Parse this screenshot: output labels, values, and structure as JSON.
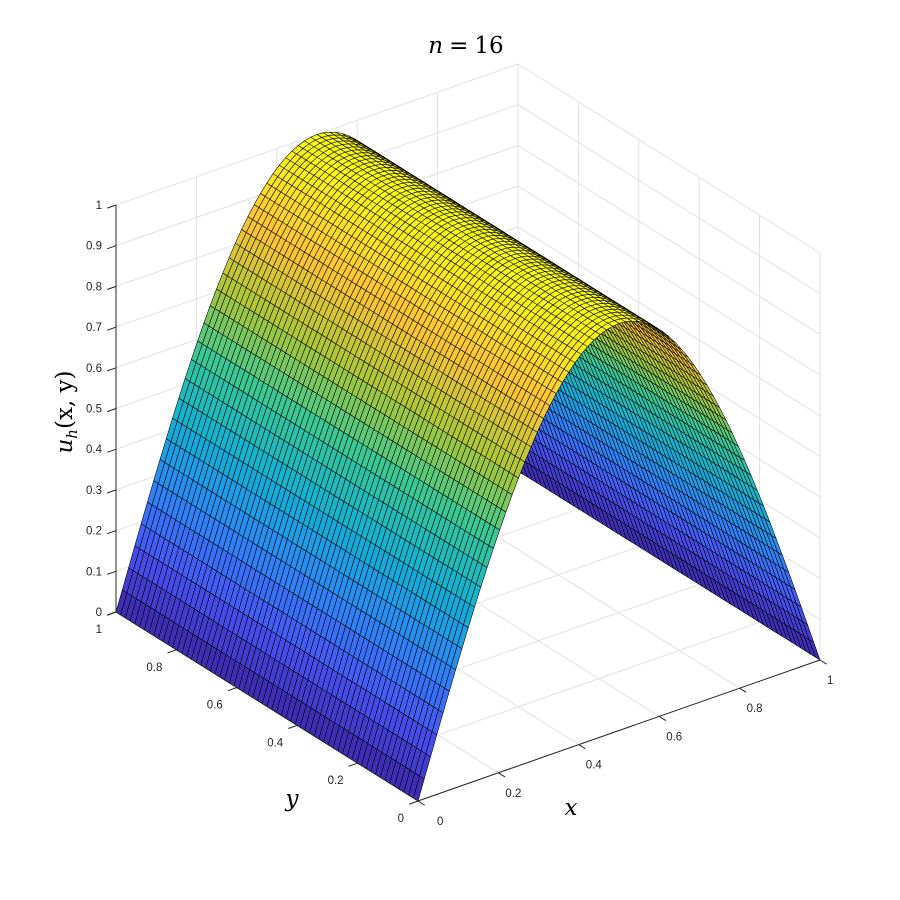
{
  "chart_data": {
    "type": "surface",
    "title": "n = 16",
    "xlabel": "x",
    "ylabel": "y",
    "zlabel": "u_h(x, y)",
    "xlim": [
      0,
      1
    ],
    "ylim": [
      0,
      1
    ],
    "zlim": [
      0,
      1
    ],
    "x_ticks": [
      "0",
      "0.2",
      "0.4",
      "0.6",
      "0.8",
      "1"
    ],
    "y_ticks": [
      "0",
      "0.2",
      "0.4",
      "0.6",
      "0.8",
      "1"
    ],
    "z_ticks": [
      "0",
      "0.1",
      "0.2",
      "0.3",
      "0.4",
      "0.5",
      "0.6",
      "0.7",
      "0.8",
      "0.9",
      "1"
    ],
    "grid": true,
    "colormap": "parula",
    "function": "u(x,y) = sin(pi*x), constant along y",
    "surface_grid": {
      "nx": 65,
      "ny": 65
    },
    "profile_along_x": {
      "x": [
        0,
        0.1,
        0.2,
        0.3,
        0.4,
        0.5,
        0.6,
        0.7,
        0.8,
        0.9,
        1
      ],
      "u": [
        0,
        0.31,
        0.59,
        0.81,
        0.95,
        1.0,
        0.95,
        0.81,
        0.59,
        0.31,
        0
      ]
    }
  }
}
